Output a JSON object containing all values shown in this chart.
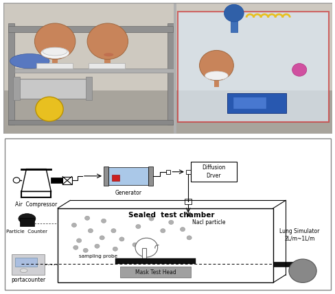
{
  "diagram": {
    "chamber_title": "Sealed  test chamber",
    "labels": {
      "air_compressor": "Air  Compressor",
      "generator": "Generator",
      "diffusion_dryer": "Diffusion\nDrver",
      "particle_counter": "Particle  Counter",
      "portacounter": "portacounter",
      "nacl_particle": "Nacl particle",
      "sampling_probe": "sampling probe",
      "mask_test_head": "Mask Test Head",
      "lung_simulator": "Lung Simulator\n2L/m~1L/m"
    }
  },
  "photo": {
    "bg_color": "#c5c0b8",
    "wall_color": "#cec9c0",
    "left_bg": "#b8b4ac",
    "frame_color": "#787878",
    "head_color": "#c8845a",
    "head_edge": "#a06840",
    "mask_color": "#f0f0f0",
    "chamber_edge": "#cc3333",
    "chamber_fill": "#dde8f0"
  }
}
